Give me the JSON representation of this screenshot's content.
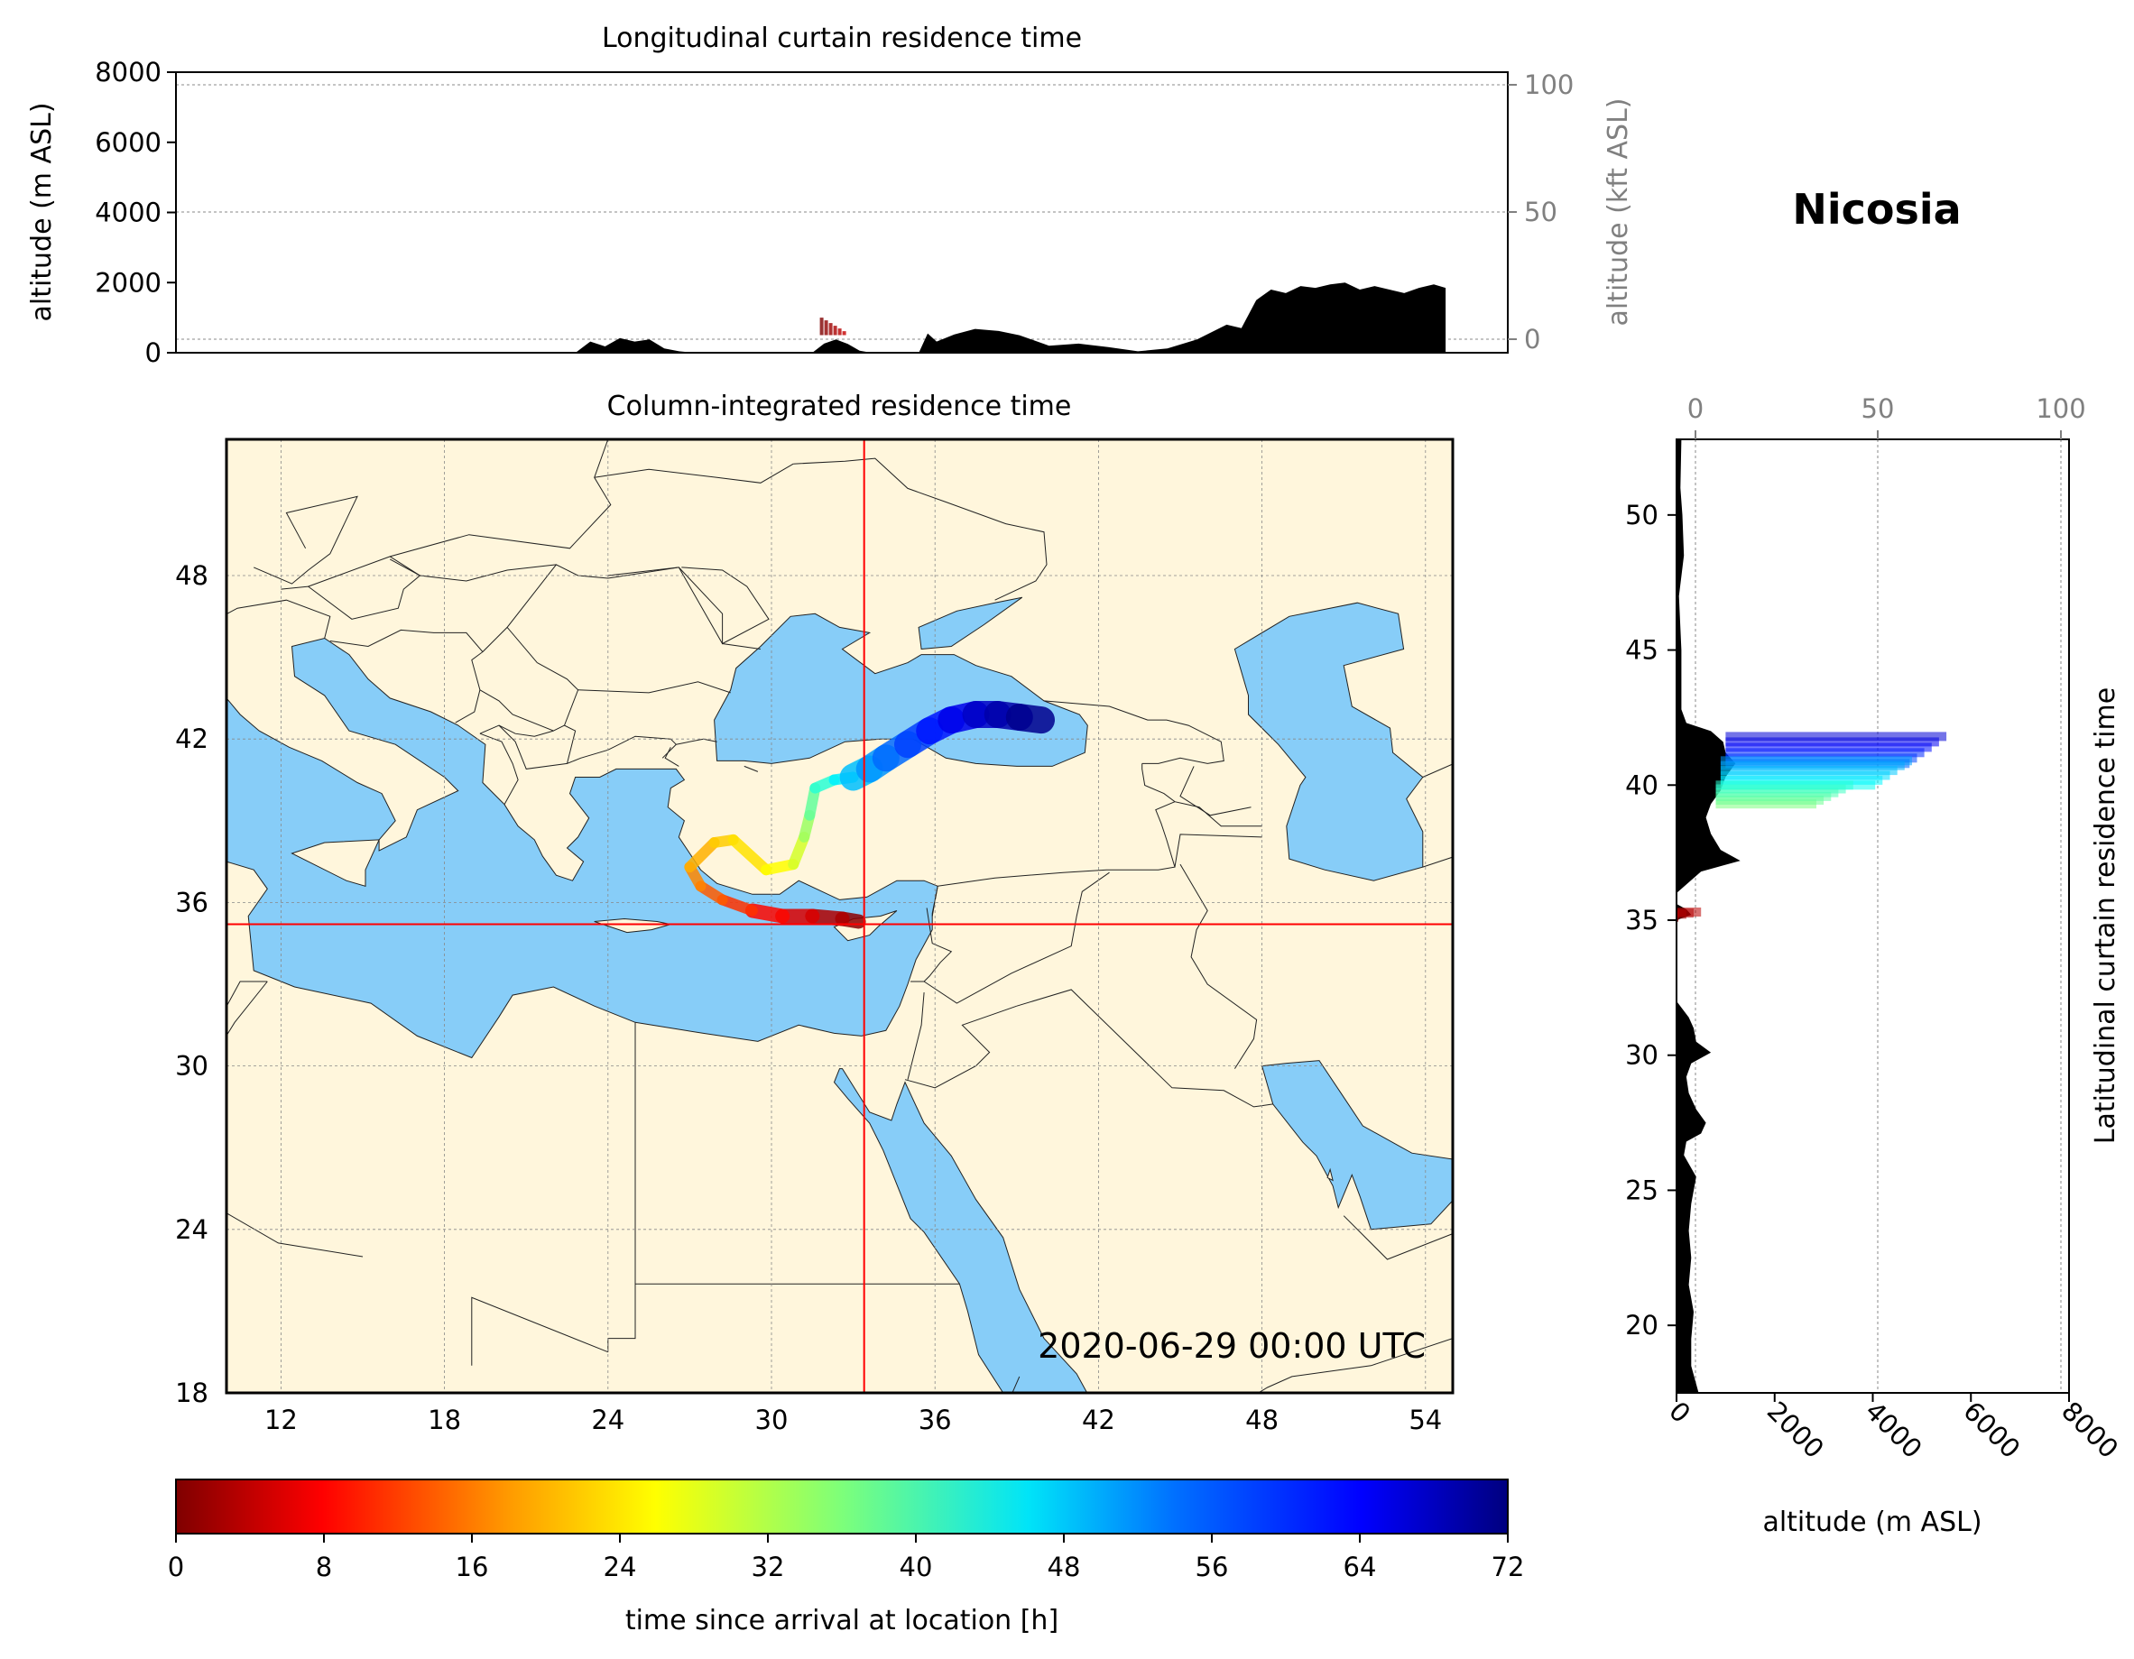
{
  "site_title": "Nicosia",
  "timestamp": "2020-06-29 00:00 UTC",
  "colors": {
    "land": "#fff6dc",
    "sea": "#87cdf8",
    "terrain": "#000000",
    "crosshair": "#ff0000",
    "secondary_axis": "#808080"
  },
  "chart_data": [
    {
      "id": "longitudinal",
      "type": "area",
      "title": "Longitudinal curtain residence time",
      "ylabel": "altitude (m ASL)",
      "ylabel_right": "altitude (kft ASL)",
      "xlim": [
        10.5,
        55.5
      ],
      "ylim": [
        0,
        8000
      ],
      "yticks": [
        "0",
        "2000",
        "4000",
        "6000",
        "8000"
      ],
      "yticks_right": [
        "0",
        "50",
        "100"
      ],
      "series": [
        {
          "x": [
            10.5,
            24.0,
            24.5,
            25.0,
            25.5,
            26.0,
            26.5,
            27.0,
            27.5,
            28.0,
            32.0,
            32.4,
            32.8,
            33.2,
            33.6,
            34.0,
            35.0,
            35.6,
            35.9,
            36.2,
            36.8,
            37.5,
            38.3,
            39.0,
            40.0,
            41.0,
            42.0,
            43.0,
            44.0,
            45.0,
            46.0,
            46.5,
            47.0,
            47.5,
            48.0,
            48.5,
            49.0,
            49.5,
            50.0,
            50.5,
            51.0,
            51.5,
            52.0,
            52.5,
            53.0,
            53.4,
            53.4,
            55.5
          ],
          "altitude": [
            0,
            0,
            320,
            180,
            420,
            320,
            380,
            120,
            40,
            0,
            0,
            260,
            380,
            250,
            60,
            0,
            0,
            0,
            550,
            320,
            520,
            680,
            620,
            500,
            200,
            260,
            160,
            40,
            120,
            380,
            800,
            700,
            1500,
            1800,
            1700,
            1900,
            1850,
            1950,
            2000,
            1800,
            1900,
            1800,
            1700,
            1850,
            1950,
            1850,
            0,
            0
          ]
        }
      ],
      "plume": [
        {
          "x": 32.5,
          "altitude_range": [
            500,
            1000
          ],
          "age_h": [
            0,
            6
          ]
        }
      ],
      "grid": true
    },
    {
      "id": "map",
      "type": "heatmap",
      "title": "Column-integrated residence time",
      "xlim": [
        10.0,
        55.0
      ],
      "ylim": [
        18.0,
        53.0
      ],
      "xticks": [
        "12",
        "18",
        "24",
        "30",
        "36",
        "42",
        "48",
        "54"
      ],
      "yticks": [
        "18",
        "24",
        "30",
        "36",
        "42",
        "48"
      ],
      "arrival_location": {
        "lon": 33.4,
        "lat": 35.2
      },
      "plume_track": {
        "lon": [
          33.2,
          32.6,
          31.5,
          30.4,
          29.3,
          28.2,
          27.4,
          27.0,
          27.9,
          28.6,
          29.8,
          30.8,
          31.2,
          31.4,
          31.6,
          32.3,
          33.0,
          33.6,
          34.2,
          35.0,
          35.8,
          36.6,
          37.5,
          38.3,
          39.1,
          39.9
        ],
        "lat": [
          35.3,
          35.4,
          35.5,
          35.5,
          35.7,
          36.1,
          36.6,
          37.3,
          38.2,
          38.3,
          37.2,
          37.4,
          38.4,
          39.2,
          40.2,
          40.5,
          40.6,
          40.9,
          41.3,
          41.8,
          42.3,
          42.7,
          42.9,
          42.9,
          42.8,
          42.7
        ],
        "age_h": [
          0,
          2,
          5,
          8,
          11,
          14,
          17,
          20,
          23,
          24,
          26,
          28,
          32,
          36,
          40,
          44,
          48,
          51,
          54,
          57,
          60,
          63,
          66,
          68,
          70,
          72
        ]
      },
      "grid": true
    },
    {
      "id": "latitudinal",
      "type": "area",
      "title": "Latitudinal curtain residence time",
      "xlabel": "altitude (m ASL)",
      "xlim": [
        0,
        8000
      ],
      "ylim": [
        17.5,
        52.8
      ],
      "xticks": [
        "0",
        "2000",
        "4000",
        "6000",
        "8000"
      ],
      "xticks_top": [
        "0",
        "50",
        "100"
      ],
      "yticks": [
        "20",
        "25",
        "30",
        "35",
        "40",
        "45",
        "50"
      ],
      "series": [
        {
          "lat": [
            17.5,
            18.5,
            19.5,
            20.5,
            21.5,
            22.5,
            23.5,
            24.5,
            25.5,
            26.3,
            26.8,
            27.1,
            27.5,
            28.0,
            28.6,
            29.2,
            29.7,
            30.1,
            30.5,
            31.0,
            31.4,
            32.0,
            35.0,
            35.2,
            35.4,
            35.6,
            36.0,
            36.8,
            37.2,
            37.6,
            38.2,
            38.8,
            39.3,
            39.8,
            40.3,
            40.8,
            41.2,
            41.6,
            42.0,
            42.3,
            42.8,
            45.0,
            47.0,
            48.5,
            50.0,
            51.0,
            52.8
          ],
          "altitude": [
            450,
            300,
            300,
            350,
            250,
            300,
            250,
            300,
            400,
            150,
            200,
            500,
            600,
            400,
            250,
            200,
            300,
            700,
            400,
            350,
            250,
            0,
            0,
            300,
            200,
            0,
            0,
            500,
            1300,
            900,
            700,
            600,
            700,
            900,
            1000,
            1200,
            1000,
            950,
            700,
            200,
            100,
            100,
            50,
            150,
            120,
            80,
            100
          ]
        }
      ],
      "plume": [
        {
          "lat_range": [
            40.8,
            41.8
          ],
          "altitude_range": [
            1000,
            5500
          ],
          "age_h": [
            56,
            66
          ]
        },
        {
          "lat_range": [
            40.0,
            40.9
          ],
          "altitude_range": [
            900,
            4800
          ],
          "age_h": [
            44,
            52
          ]
        },
        {
          "lat_range": [
            39.3,
            40.0
          ],
          "altitude_range": [
            800,
            3600
          ],
          "age_h": [
            36,
            42
          ]
        },
        {
          "lat_range": [
            35.1,
            35.3
          ],
          "altitude_range": [
            0,
            500
          ],
          "age_h": [
            0,
            4
          ]
        }
      ],
      "grid": true
    }
  ],
  "colorbar": {
    "label": "time since arrival at location [h]",
    "ticks": [
      "0",
      "8",
      "16",
      "24",
      "32",
      "40",
      "48",
      "56",
      "64",
      "72"
    ],
    "range": [
      0,
      72
    ],
    "colormap": "jet_r"
  }
}
